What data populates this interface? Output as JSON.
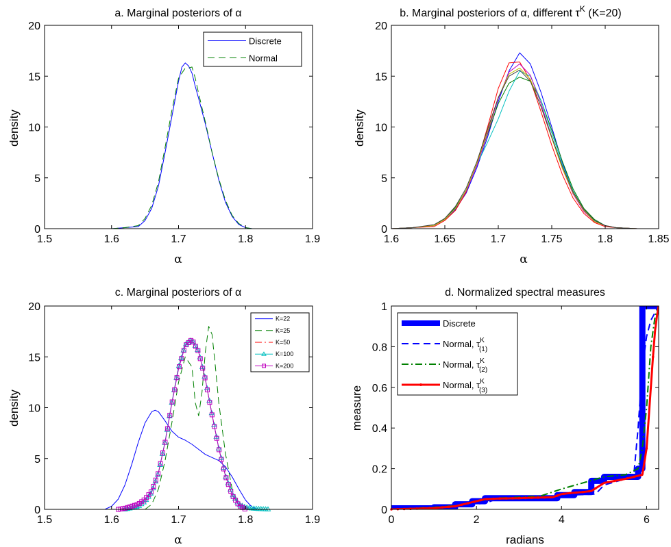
{
  "chart_data": [
    {
      "type": "line",
      "title": "a. Marginal posteriors of α",
      "xlabel": "α",
      "ylabel": "density",
      "xlim": [
        1.5,
        1.9
      ],
      "ylim": [
        0,
        20
      ],
      "xticks": [
        "1.5",
        "1.6",
        "1.7",
        "1.8",
        "1.9"
      ],
      "yticks": [
        "0",
        "5",
        "10",
        "15",
        "20"
      ],
      "legend": "top-right",
      "series": [
        {
          "name": "Discrete",
          "color": "#0000ff",
          "dash": "solid",
          "x": [
            1.6,
            1.62,
            1.64,
            1.65,
            1.66,
            1.67,
            1.68,
            1.69,
            1.7,
            1.705,
            1.71,
            1.715,
            1.72,
            1.725,
            1.73,
            1.74,
            1.75,
            1.76,
            1.77,
            1.78,
            1.79,
            1.8,
            1.81
          ],
          "y": [
            0,
            0.1,
            0.2,
            0.8,
            2.0,
            4.2,
            7.5,
            11.0,
            14.5,
            15.9,
            16.3,
            16.0,
            15.3,
            14.0,
            12.8,
            10.3,
            7.5,
            4.8,
            2.6,
            1.2,
            0.4,
            0.1,
            0
          ]
        },
        {
          "name": "Normal",
          "color": "#008000",
          "dash": "dashed",
          "x": [
            1.6,
            1.62,
            1.64,
            1.65,
            1.66,
            1.67,
            1.68,
            1.69,
            1.7,
            1.71,
            1.715,
            1.72,
            1.725,
            1.73,
            1.74,
            1.75,
            1.76,
            1.77,
            1.78,
            1.79,
            1.8,
            1.81
          ],
          "y": [
            0,
            0.1,
            0.3,
            1.0,
            2.3,
            4.6,
            8.0,
            11.6,
            14.8,
            15.8,
            15.8,
            15.9,
            14.8,
            13.3,
            10.5,
            7.5,
            4.9,
            2.8,
            1.3,
            0.5,
            0.1,
            0
          ]
        }
      ]
    },
    {
      "type": "line",
      "title": "b. Marginal posteriors of α, different τ",
      "title_sup": "K",
      "title_suffix": " (K=20)",
      "xlabel": "α",
      "ylabel": "density",
      "xlim": [
        1.6,
        1.85
      ],
      "ylim": [
        0,
        20
      ],
      "xticks": [
        "1.6",
        "1.65",
        "1.7",
        "1.75",
        "1.8",
        "1.85"
      ],
      "yticks": [
        "0",
        "5",
        "10",
        "15",
        "20"
      ],
      "series": [
        {
          "color": "#0000ff",
          "x": [
            1.6,
            1.62,
            1.64,
            1.65,
            1.66,
            1.67,
            1.68,
            1.69,
            1.7,
            1.71,
            1.72,
            1.73,
            1.74,
            1.75,
            1.76,
            1.77,
            1.78,
            1.79,
            1.8,
            1.81,
            1.83
          ],
          "y": [
            0,
            0.1,
            0.3,
            0.9,
            1.9,
            3.5,
            6.0,
            9.0,
            12.5,
            15.5,
            17.3,
            16.2,
            13.4,
            10.0,
            6.5,
            3.6,
            1.8,
            0.7,
            0.3,
            0.1,
            0
          ]
        },
        {
          "color": "#008000",
          "x": [
            1.6,
            1.62,
            1.64,
            1.65,
            1.66,
            1.67,
            1.68,
            1.69,
            1.7,
            1.71,
            1.72,
            1.73,
            1.74,
            1.75,
            1.76,
            1.77,
            1.78,
            1.79,
            1.8,
            1.81,
            1.83
          ],
          "y": [
            0,
            0.1,
            0.3,
            1.0,
            2.1,
            3.8,
            6.3,
            9.3,
            12.3,
            14.3,
            14.9,
            14.5,
            12.6,
            9.7,
            6.6,
            3.9,
            2.0,
            0.9,
            0.3,
            0.1,
            0
          ]
        },
        {
          "color": "#ff0000",
          "x": [
            1.6,
            1.62,
            1.64,
            1.65,
            1.66,
            1.67,
            1.68,
            1.69,
            1.7,
            1.71,
            1.72,
            1.73,
            1.74,
            1.75,
            1.76,
            1.77,
            1.78,
            1.79,
            1.8,
            1.81,
            1.83
          ],
          "y": [
            0,
            0.1,
            0.2,
            0.8,
            1.8,
            3.6,
            6.4,
            10.0,
            13.8,
            16.3,
            16.4,
            14.6,
            11.5,
            8.2,
            5.3,
            3.0,
            1.5,
            0.6,
            0.2,
            0.1,
            0
          ]
        },
        {
          "color": "#00bfbf",
          "x": [
            1.6,
            1.62,
            1.64,
            1.65,
            1.66,
            1.67,
            1.68,
            1.69,
            1.7,
            1.71,
            1.72,
            1.73,
            1.74,
            1.75,
            1.76,
            1.77,
            1.78,
            1.79,
            1.8,
            1.81,
            1.83
          ],
          "y": [
            0,
            0.1,
            0.3,
            0.9,
            2.0,
            3.8,
            6.3,
            8.5,
            10.8,
            13.5,
            15.5,
            15.0,
            12.6,
            9.4,
            6.3,
            3.7,
            1.9,
            0.8,
            0.3,
            0.1,
            0
          ]
        },
        {
          "color": "#bf00bf",
          "x": [
            1.6,
            1.62,
            1.64,
            1.65,
            1.66,
            1.67,
            1.68,
            1.69,
            1.7,
            1.71,
            1.72,
            1.73,
            1.74,
            1.75,
            1.76,
            1.77,
            1.78,
            1.79,
            1.8,
            1.81,
            1.83
          ],
          "y": [
            0,
            0.1,
            0.3,
            0.9,
            2.0,
            3.7,
            6.2,
            9.4,
            12.8,
            15.4,
            16.2,
            15.1,
            12.3,
            9.0,
            5.9,
            3.4,
            1.7,
            0.7,
            0.3,
            0.1,
            0
          ]
        },
        {
          "color": "#bfbf00",
          "x": [
            1.6,
            1.62,
            1.64,
            1.65,
            1.66,
            1.67,
            1.68,
            1.69,
            1.7,
            1.71,
            1.72,
            1.73,
            1.74,
            1.75,
            1.76,
            1.77,
            1.78,
            1.79,
            1.8,
            1.81,
            1.83
          ],
          "y": [
            0,
            0.1,
            0.3,
            0.9,
            2.0,
            3.8,
            6.4,
            9.6,
            12.9,
            15.2,
            15.8,
            14.7,
            12.0,
            8.9,
            5.9,
            3.5,
            1.8,
            0.7,
            0.3,
            0.1,
            0
          ]
        },
        {
          "color": "#404040",
          "x": [
            1.6,
            1.62,
            1.64,
            1.65,
            1.66,
            1.67,
            1.68,
            1.69,
            1.7,
            1.71,
            1.72,
            1.73,
            1.74,
            1.75,
            1.76,
            1.77,
            1.78,
            1.79,
            1.8,
            1.81,
            1.83
          ],
          "y": [
            0,
            0.1,
            0.4,
            1.0,
            2.2,
            4.0,
            6.6,
            9.8,
            12.9,
            15.0,
            15.6,
            14.5,
            12.0,
            9.0,
            6.1,
            3.6,
            1.9,
            0.8,
            0.3,
            0.1,
            0
          ]
        }
      ]
    },
    {
      "type": "line",
      "title": "c. Marginal posteriors of α",
      "xlabel": "α",
      "ylabel": "density",
      "xlim": [
        1.5,
        1.9
      ],
      "ylim": [
        0,
        20
      ],
      "xticks": [
        "1.5",
        "1.6",
        "1.7",
        "1.8",
        "1.9"
      ],
      "yticks": [
        "0",
        "5",
        "10",
        "15",
        "20"
      ],
      "legend": "top-right",
      "series": [
        {
          "name": "K=22",
          "color": "#0000ff",
          "dash": "solid",
          "marker": "none",
          "x": [
            1.59,
            1.6,
            1.61,
            1.62,
            1.63,
            1.64,
            1.65,
            1.66,
            1.665,
            1.67,
            1.68,
            1.69,
            1.7,
            1.71,
            1.72,
            1.73,
            1.74,
            1.75,
            1.76,
            1.77,
            1.78,
            1.79,
            1.8,
            1.81,
            1.82
          ],
          "y": [
            0,
            0.3,
            1.0,
            2.4,
            4.4,
            6.6,
            8.5,
            9.6,
            9.75,
            9.6,
            8.7,
            7.7,
            7.1,
            6.8,
            6.4,
            5.9,
            5.4,
            5.1,
            4.8,
            4.2,
            3.2,
            2.0,
            0.9,
            0.2,
            0
          ]
        },
        {
          "name": "K=25",
          "color": "#008000",
          "dash": "dashed",
          "marker": "none",
          "x": [
            1.65,
            1.66,
            1.67,
            1.68,
            1.69,
            1.7,
            1.71,
            1.72,
            1.725,
            1.73,
            1.735,
            1.74,
            1.745,
            1.75,
            1.755,
            1.76,
            1.77,
            1.78,
            1.79,
            1.8
          ],
          "y": [
            0,
            0.5,
            2.0,
            4.8,
            8.5,
            12.5,
            15.0,
            14.0,
            10.5,
            9.2,
            11.5,
            15.5,
            18.0,
            17.2,
            14.0,
            10.5,
            5.5,
            2.0,
            0.5,
            0
          ]
        },
        {
          "name": "K=50",
          "color": "#ff0000",
          "dash": "dashdot",
          "marker": "none",
          "x": [
            1.62,
            1.64,
            1.65,
            1.66,
            1.67,
            1.68,
            1.69,
            1.7,
            1.71,
            1.72,
            1.73,
            1.74,
            1.75,
            1.76,
            1.77,
            1.78,
            1.79,
            1.8,
            1.81
          ],
          "y": [
            0,
            0.3,
            0.8,
            1.7,
            3.6,
            6.7,
            10.5,
            14.0,
            16.2,
            16.7,
            15.5,
            12.8,
            9.3,
            6.0,
            3.3,
            1.5,
            0.5,
            0.1,
            0
          ]
        },
        {
          "name": "K=100",
          "color": "#00bfbf",
          "dash": "solid",
          "marker": "triangle",
          "x": [
            1.62,
            1.64,
            1.65,
            1.66,
            1.67,
            1.68,
            1.69,
            1.7,
            1.71,
            1.72,
            1.73,
            1.74,
            1.75,
            1.76,
            1.77,
            1.78,
            1.79,
            1.8,
            1.81,
            1.82,
            1.835
          ],
          "y": [
            0,
            0.3,
            0.8,
            1.7,
            3.6,
            6.7,
            10.5,
            14.0,
            16.2,
            16.7,
            15.5,
            12.8,
            9.3,
            6.0,
            3.3,
            1.5,
            0.5,
            0.2,
            0.1,
            0.05,
            0
          ]
        },
        {
          "name": "K=200",
          "color": "#bf00bf",
          "dash": "solid",
          "marker": "square",
          "x": [
            1.61,
            1.62,
            1.63,
            1.64,
            1.65,
            1.66,
            1.67,
            1.68,
            1.69,
            1.7,
            1.71,
            1.72,
            1.73,
            1.74,
            1.75,
            1.76,
            1.77,
            1.78,
            1.79,
            1.8
          ],
          "y": [
            0,
            0.1,
            0.3,
            0.5,
            1.0,
            1.8,
            3.6,
            6.6,
            10.4,
            13.8,
            16.1,
            16.7,
            15.5,
            12.8,
            9.3,
            6.0,
            3.3,
            1.4,
            0.4,
            0
          ]
        }
      ]
    },
    {
      "type": "line",
      "title": "d. Normalized spectral measures",
      "xlabel": "radians",
      "ylabel": "measure",
      "xlim": [
        0,
        6.2832
      ],
      "ylim": [
        0,
        1
      ],
      "xticks": [
        "0",
        "2",
        "4",
        "6"
      ],
      "yticks": [
        "0",
        "0.2",
        "0.4",
        "0.6",
        "0.8",
        "1"
      ],
      "legend": "top-left",
      "series": [
        {
          "name": "Discrete",
          "color": "#0000ff",
          "dash": "solid",
          "width": "thick",
          "step": true,
          "x": [
            0,
            1.0,
            1.0,
            1.5,
            1.5,
            1.9,
            1.9,
            2.2,
            2.2,
            3.9,
            3.9,
            4.3,
            4.3,
            4.7,
            4.7,
            5.0,
            5.0,
            5.8,
            5.8,
            5.9,
            5.9,
            6.2832
          ],
          "y": [
            0.005,
            0.005,
            0.01,
            0.01,
            0.025,
            0.025,
            0.04,
            0.04,
            0.055,
            0.055,
            0.07,
            0.07,
            0.085,
            0.085,
            0.14,
            0.14,
            0.16,
            0.16,
            0.2,
            0.2,
            1.0,
            1.0
          ]
        },
        {
          "name": "Normal, τ",
          "sup": "K",
          "sub": "(1)",
          "color": "#0000ff",
          "dash": "dashed",
          "x": [
            0,
            1.0,
            1.5,
            2.2,
            2.4,
            3.0,
            3.8,
            4.2,
            4.8,
            5.0,
            5.5,
            5.7,
            5.8,
            5.9,
            6.0,
            6.1,
            6.2832
          ],
          "y": [
            0,
            0.01,
            0.02,
            0.03,
            0.045,
            0.05,
            0.055,
            0.07,
            0.075,
            0.12,
            0.15,
            0.17,
            0.4,
            0.7,
            0.85,
            0.93,
            1.0
          ]
        },
        {
          "name": "Normal, τ",
          "sup": "K",
          "sub": "(2)",
          "color": "#008000",
          "dash": "dashdot",
          "x": [
            0,
            1.0,
            1.6,
            2.0,
            2.5,
            3.0,
            3.5,
            4.0,
            4.5,
            5.0,
            5.5,
            5.8,
            5.9,
            6.0,
            6.1,
            6.2,
            6.2832
          ],
          "y": [
            0,
            0.01,
            0.02,
            0.04,
            0.055,
            0.06,
            0.065,
            0.1,
            0.13,
            0.16,
            0.17,
            0.2,
            0.3,
            0.5,
            0.8,
            0.95,
            1.0
          ]
        },
        {
          "name": "Normal, τ",
          "sup": "K",
          "sub": "(3)",
          "color": "#ff0000",
          "dash": "solid",
          "marker": "dot",
          "x": [
            0,
            0.5,
            1.0,
            1.5,
            1.8,
            2.0,
            2.2,
            2.5,
            3.0,
            3.5,
            3.8,
            4.0,
            4.2,
            4.5,
            4.7,
            5.0,
            5.5,
            5.9,
            6.0,
            6.05,
            6.1,
            6.15,
            6.2,
            6.25,
            6.2832
          ],
          "y": [
            0,
            0.003,
            0.006,
            0.015,
            0.03,
            0.04,
            0.05,
            0.053,
            0.055,
            0.058,
            0.06,
            0.075,
            0.08,
            0.085,
            0.09,
            0.13,
            0.15,
            0.17,
            0.3,
            0.45,
            0.6,
            0.75,
            0.88,
            0.96,
            1.0
          ]
        }
      ]
    }
  ]
}
